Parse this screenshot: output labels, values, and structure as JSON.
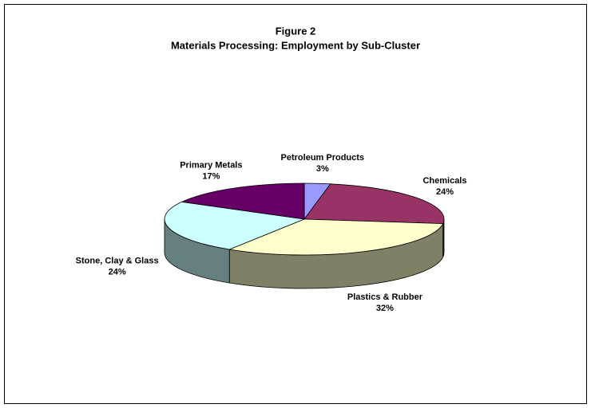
{
  "chart_data": {
    "type": "pie3d",
    "title": "Figure 2",
    "subtitle": "Materials Processing: Employment by Sub-Cluster",
    "categories": [
      "Petroleum Products",
      "Chemicals",
      "Plastics & Rubber",
      "Stone, Clay & Glass",
      "Primary Metals"
    ],
    "values": [
      3,
      24,
      32,
      24,
      17
    ],
    "value_labels": [
      "3%",
      "24%",
      "32%",
      "24%",
      "17%"
    ],
    "colors": [
      "#9999ff",
      "#993366",
      "#ffffcc",
      "#ccffff",
      "#660066"
    ]
  }
}
